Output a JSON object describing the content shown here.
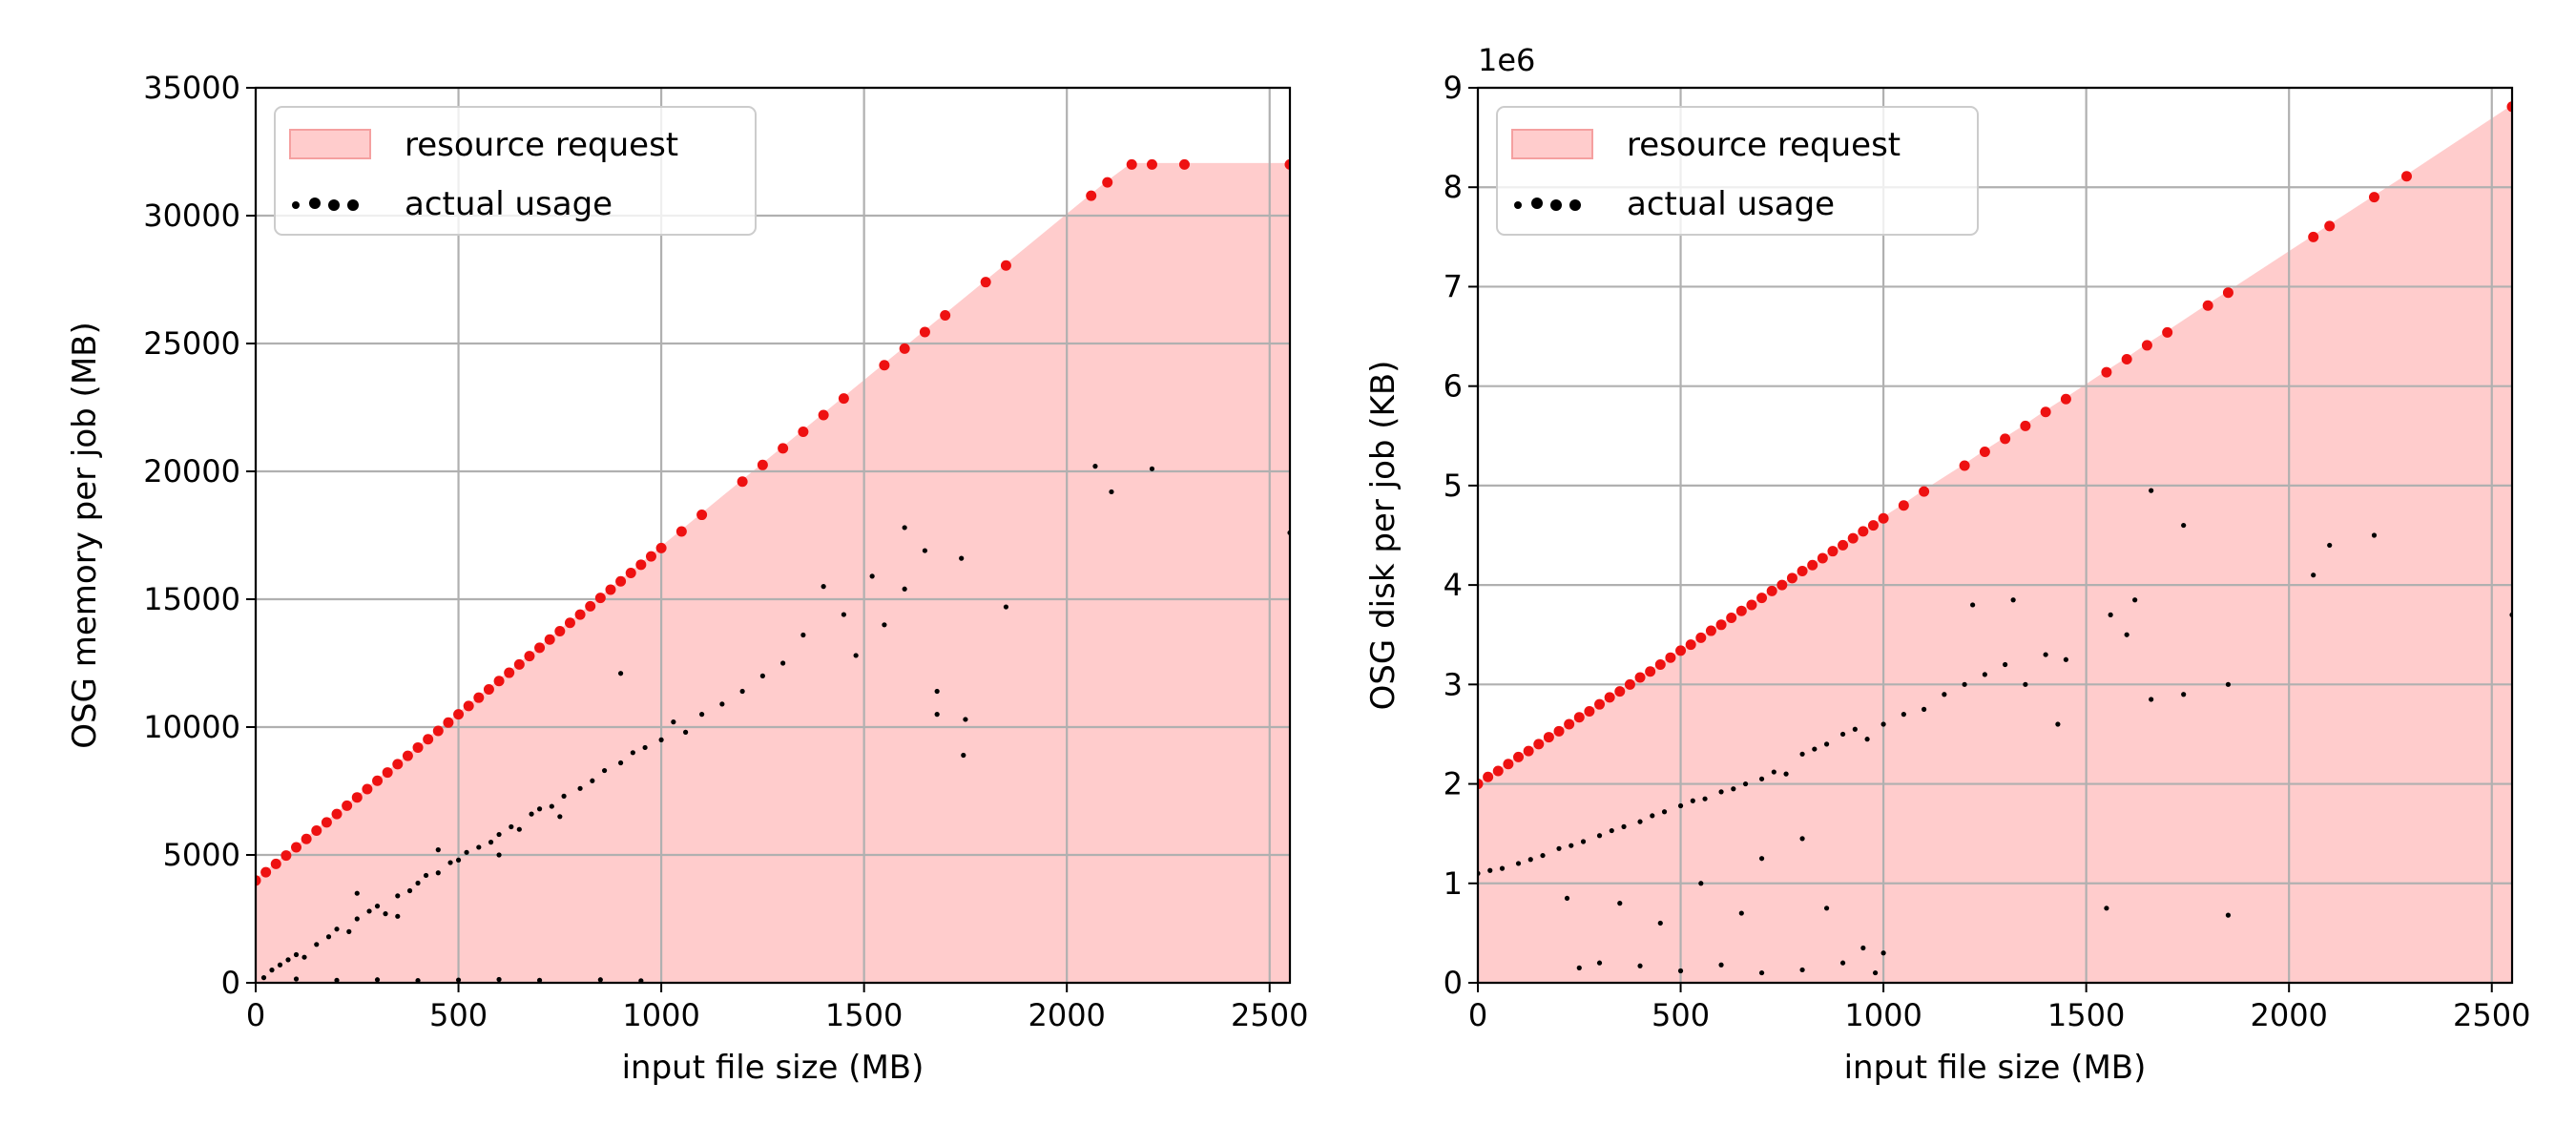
{
  "chart_data": [
    {
      "type": "scatter",
      "xlabel": "input file size (MB)",
      "ylabel": "OSG memory per job (MB)",
      "xlim": [
        0,
        2550
      ],
      "ylim": [
        0,
        35000
      ],
      "xticks": [
        0,
        500,
        1000,
        1500,
        2000,
        2500
      ],
      "yticks": [
        0,
        5000,
        10000,
        15000,
        20000,
        25000,
        30000,
        35000
      ],
      "grid": true,
      "legend": "upper left",
      "series": [
        {
          "name": "resource request",
          "color": "#ffcccc",
          "marker_color": "#ee1111",
          "x": [
            0,
            25,
            50,
            75,
            100,
            125,
            150,
            175,
            200,
            225,
            250,
            275,
            300,
            325,
            350,
            375,
            400,
            425,
            450,
            475,
            500,
            525,
            550,
            575,
            600,
            625,
            650,
            675,
            700,
            725,
            750,
            775,
            800,
            825,
            850,
            875,
            900,
            925,
            950,
            975,
            1000,
            1050,
            1100,
            1200,
            1250,
            1300,
            1350,
            1400,
            1450,
            1550,
            1600,
            1650,
            1700,
            1800,
            1850,
            2060,
            2100,
            2160,
            2210,
            2290,
            2550
          ],
          "values": [
            4000,
            4325,
            4650,
            4975,
            5300,
            5625,
            5950,
            6275,
            6600,
            6925,
            7250,
            7575,
            7900,
            8225,
            8550,
            8875,
            9200,
            9525,
            9850,
            10175,
            10500,
            10825,
            11150,
            11475,
            11800,
            12125,
            12450,
            12775,
            13100,
            13425,
            13750,
            14075,
            14400,
            14725,
            15050,
            15375,
            15700,
            16025,
            16350,
            16675,
            17000,
            17650,
            18300,
            19600,
            20250,
            20900,
            21550,
            22200,
            22850,
            24150,
            24800,
            25450,
            26100,
            27400,
            28050,
            30780,
            31300,
            32000,
            32000,
            32000,
            32000
          ]
        },
        {
          "name": "actual usage",
          "color": "#000000",
          "x": [
            20,
            40,
            60,
            80,
            100,
            120,
            150,
            180,
            200,
            230,
            250,
            280,
            300,
            320,
            350,
            380,
            400,
            420,
            450,
            480,
            500,
            520,
            550,
            580,
            600,
            630,
            650,
            680,
            700,
            730,
            760,
            800,
            830,
            860,
            900,
            930,
            960,
            1000,
            1030,
            1060,
            1100,
            1150,
            1200,
            1250,
            1300,
            1350,
            1400,
            1450,
            1480,
            1520,
            1600,
            900,
            1550,
            1600,
            1650,
            1680,
            1680,
            1740,
            1745,
            1750,
            1850,
            2070,
            2110,
            2210,
            2550,
            100,
            200,
            300,
            400,
            500,
            600,
            700,
            850,
            950,
            250,
            350,
            450,
            600,
            750
          ],
          "values": [
            200,
            500,
            700,
            900,
            1100,
            1000,
            1500,
            1800,
            2100,
            2000,
            2500,
            2800,
            3000,
            2700,
            3400,
            3600,
            3900,
            4200,
            4300,
            4700,
            4800,
            5100,
            5300,
            5500,
            5800,
            6100,
            6000,
            6600,
            6800,
            6900,
            7300,
            7600,
            7900,
            8300,
            8600,
            9000,
            9200,
            9500,
            10200,
            9800,
            10500,
            10900,
            11400,
            12000,
            12500,
            13600,
            15500,
            14400,
            12800,
            15900,
            15400,
            12100,
            14000,
            17800,
            16900,
            11400,
            10500,
            16600,
            8900,
            10300,
            14700,
            20200,
            19200,
            20100,
            17600,
            150,
            100,
            120,
            90,
            110,
            130,
            100,
            120,
            80,
            3500,
            2600,
            5200,
            5000,
            6500
          ]
        }
      ]
    },
    {
      "type": "scatter",
      "xlabel": "input file size (MB)",
      "ylabel": "OSG disk per job (KB)",
      "offset_label": "1e6",
      "xlim": [
        0,
        2550
      ],
      "ylim": [
        0,
        9
      ],
      "xticks": [
        0,
        500,
        1000,
        1500,
        2000,
        2500
      ],
      "yticks": [
        0,
        1,
        2,
        3,
        4,
        5,
        6,
        7,
        8,
        9
      ],
      "grid": true,
      "legend": "upper left",
      "series": [
        {
          "name": "resource request",
          "color": "#ffcccc",
          "marker_color": "#ee1111",
          "x": [
            0,
            25,
            50,
            75,
            100,
            125,
            150,
            175,
            200,
            225,
            250,
            275,
            300,
            325,
            350,
            375,
            400,
            425,
            450,
            475,
            500,
            525,
            550,
            575,
            600,
            625,
            650,
            675,
            700,
            725,
            750,
            775,
            800,
            825,
            850,
            875,
            900,
            925,
            950,
            975,
            1000,
            1050,
            1100,
            1200,
            1250,
            1300,
            1350,
            1400,
            1450,
            1550,
            1600,
            1650,
            1700,
            1800,
            1850,
            2060,
            2100,
            2210,
            2290,
            2550
          ],
          "values": [
            2.0,
            2.07,
            2.13,
            2.2,
            2.27,
            2.33,
            2.4,
            2.47,
            2.53,
            2.6,
            2.67,
            2.73,
            2.8,
            2.87,
            2.93,
            3.0,
            3.07,
            3.13,
            3.2,
            3.27,
            3.34,
            3.4,
            3.47,
            3.54,
            3.6,
            3.67,
            3.74,
            3.8,
            3.87,
            3.94,
            4.0,
            4.07,
            4.14,
            4.2,
            4.27,
            4.34,
            4.4,
            4.47,
            4.54,
            4.6,
            4.67,
            4.8,
            4.94,
            5.2,
            5.34,
            5.47,
            5.6,
            5.74,
            5.87,
            6.14,
            6.27,
            6.41,
            6.54,
            6.81,
            6.94,
            7.5,
            7.61,
            7.9,
            8.11,
            8.81
          ]
        },
        {
          "name": "actual usage",
          "color": "#000000",
          "x": [
            0,
            30,
            60,
            100,
            130,
            160,
            200,
            230,
            260,
            300,
            330,
            360,
            400,
            430,
            460,
            500,
            530,
            560,
            600,
            630,
            660,
            700,
            730,
            760,
            800,
            830,
            860,
            900,
            930,
            960,
            1000,
            1050,
            1100,
            1150,
            1200,
            1250,
            1300,
            1350,
            1400,
            1450,
            1220,
            1320,
            1560,
            1600,
            1620,
            1660,
            1740,
            1660,
            1740,
            1850,
            2060,
            2100,
            2210,
            2550,
            1430,
            1550,
            1850,
            250,
            300,
            400,
            500,
            600,
            700,
            800,
            900,
            950,
            220,
            350,
            450,
            550,
            650,
            860,
            1000,
            980,
            700,
            800
          ],
          "values": [
            1.1,
            1.13,
            1.15,
            1.2,
            1.24,
            1.28,
            1.35,
            1.38,
            1.42,
            1.48,
            1.53,
            1.57,
            1.62,
            1.68,
            1.72,
            1.78,
            1.83,
            1.85,
            1.92,
            1.95,
            2.0,
            2.05,
            2.12,
            2.1,
            2.3,
            2.35,
            2.4,
            2.5,
            2.55,
            2.45,
            2.6,
            2.7,
            2.75,
            2.9,
            3.0,
            3.1,
            3.2,
            3.0,
            3.3,
            3.25,
            3.8,
            3.85,
            3.7,
            3.5,
            3.85,
            4.95,
            4.6,
            2.85,
            2.9,
            3.0,
            4.1,
            4.4,
            4.5,
            3.7,
            2.6,
            0.75,
            0.68,
            0.15,
            0.2,
            0.17,
            0.12,
            0.18,
            0.1,
            0.13,
            0.2,
            0.35,
            0.85,
            0.8,
            0.6,
            1.0,
            0.7,
            0.75,
            0.3,
            0.1,
            1.25,
            1.45
          ]
        }
      ]
    }
  ]
}
